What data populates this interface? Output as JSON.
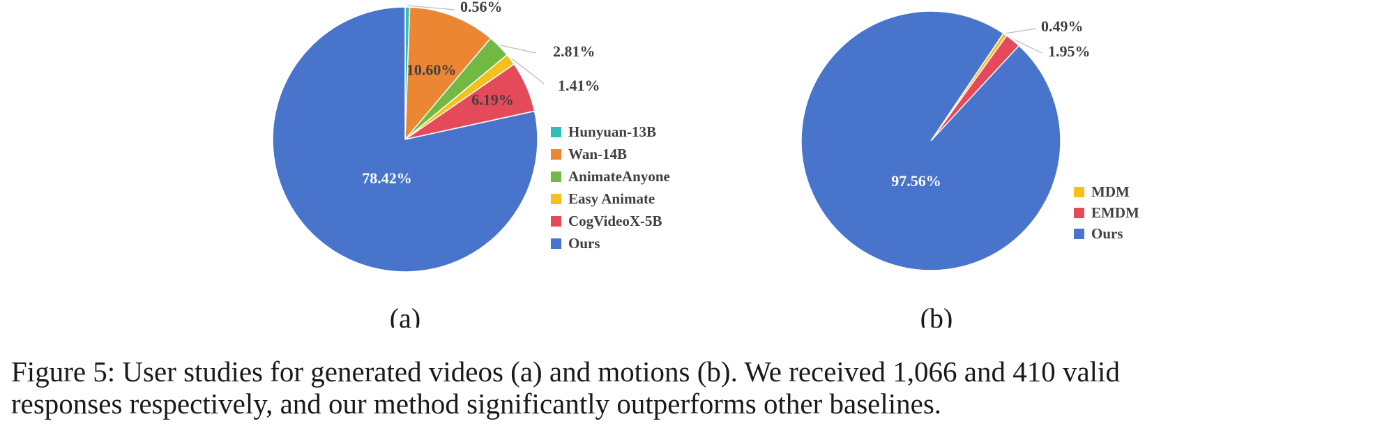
{
  "chart_data": [
    {
      "type": "pie",
      "panel_label": "(a)",
      "slices": [
        {
          "label": "Hunyuan-13B",
          "value": 0.56,
          "display": "0.56%",
          "color": "#2ebfb4"
        },
        {
          "label": "Wan-14B",
          "value": 10.6,
          "display": "10.60%",
          "color": "#ed8633"
        },
        {
          "label": "AnimateAnyone",
          "value": 2.81,
          "display": "2.81%",
          "color": "#72b944"
        },
        {
          "label": "Easy Animate",
          "value": 1.41,
          "display": "1.41%",
          "color": "#f5bf1c"
        },
        {
          "label": "CogVideoX-5B",
          "value": 6.19,
          "display": "6.19%",
          "color": "#e54a5b"
        },
        {
          "label": "Ours",
          "value": 78.42,
          "display": "78.42%",
          "color": "#4874cc"
        }
      ],
      "legend_position": "right"
    },
    {
      "type": "pie",
      "panel_label": "(b)",
      "slices": [
        {
          "label": "MDM",
          "value": 0.49,
          "display": "0.49%",
          "color": "#f5bf1c"
        },
        {
          "label": "EMDM",
          "value": 1.95,
          "display": "1.95%",
          "color": "#e54a5b"
        },
        {
          "label": "Ours",
          "value": 97.56,
          "display": "97.56%",
          "color": "#4874cc"
        }
      ],
      "legend_position": "right"
    }
  ],
  "caption": {
    "line1": "Figure 5: User studies for generated videos (a) and motions (b). We received 1,066 and 410 valid",
    "line2": "responses respectively, and our method significantly outperforms other baselines."
  }
}
